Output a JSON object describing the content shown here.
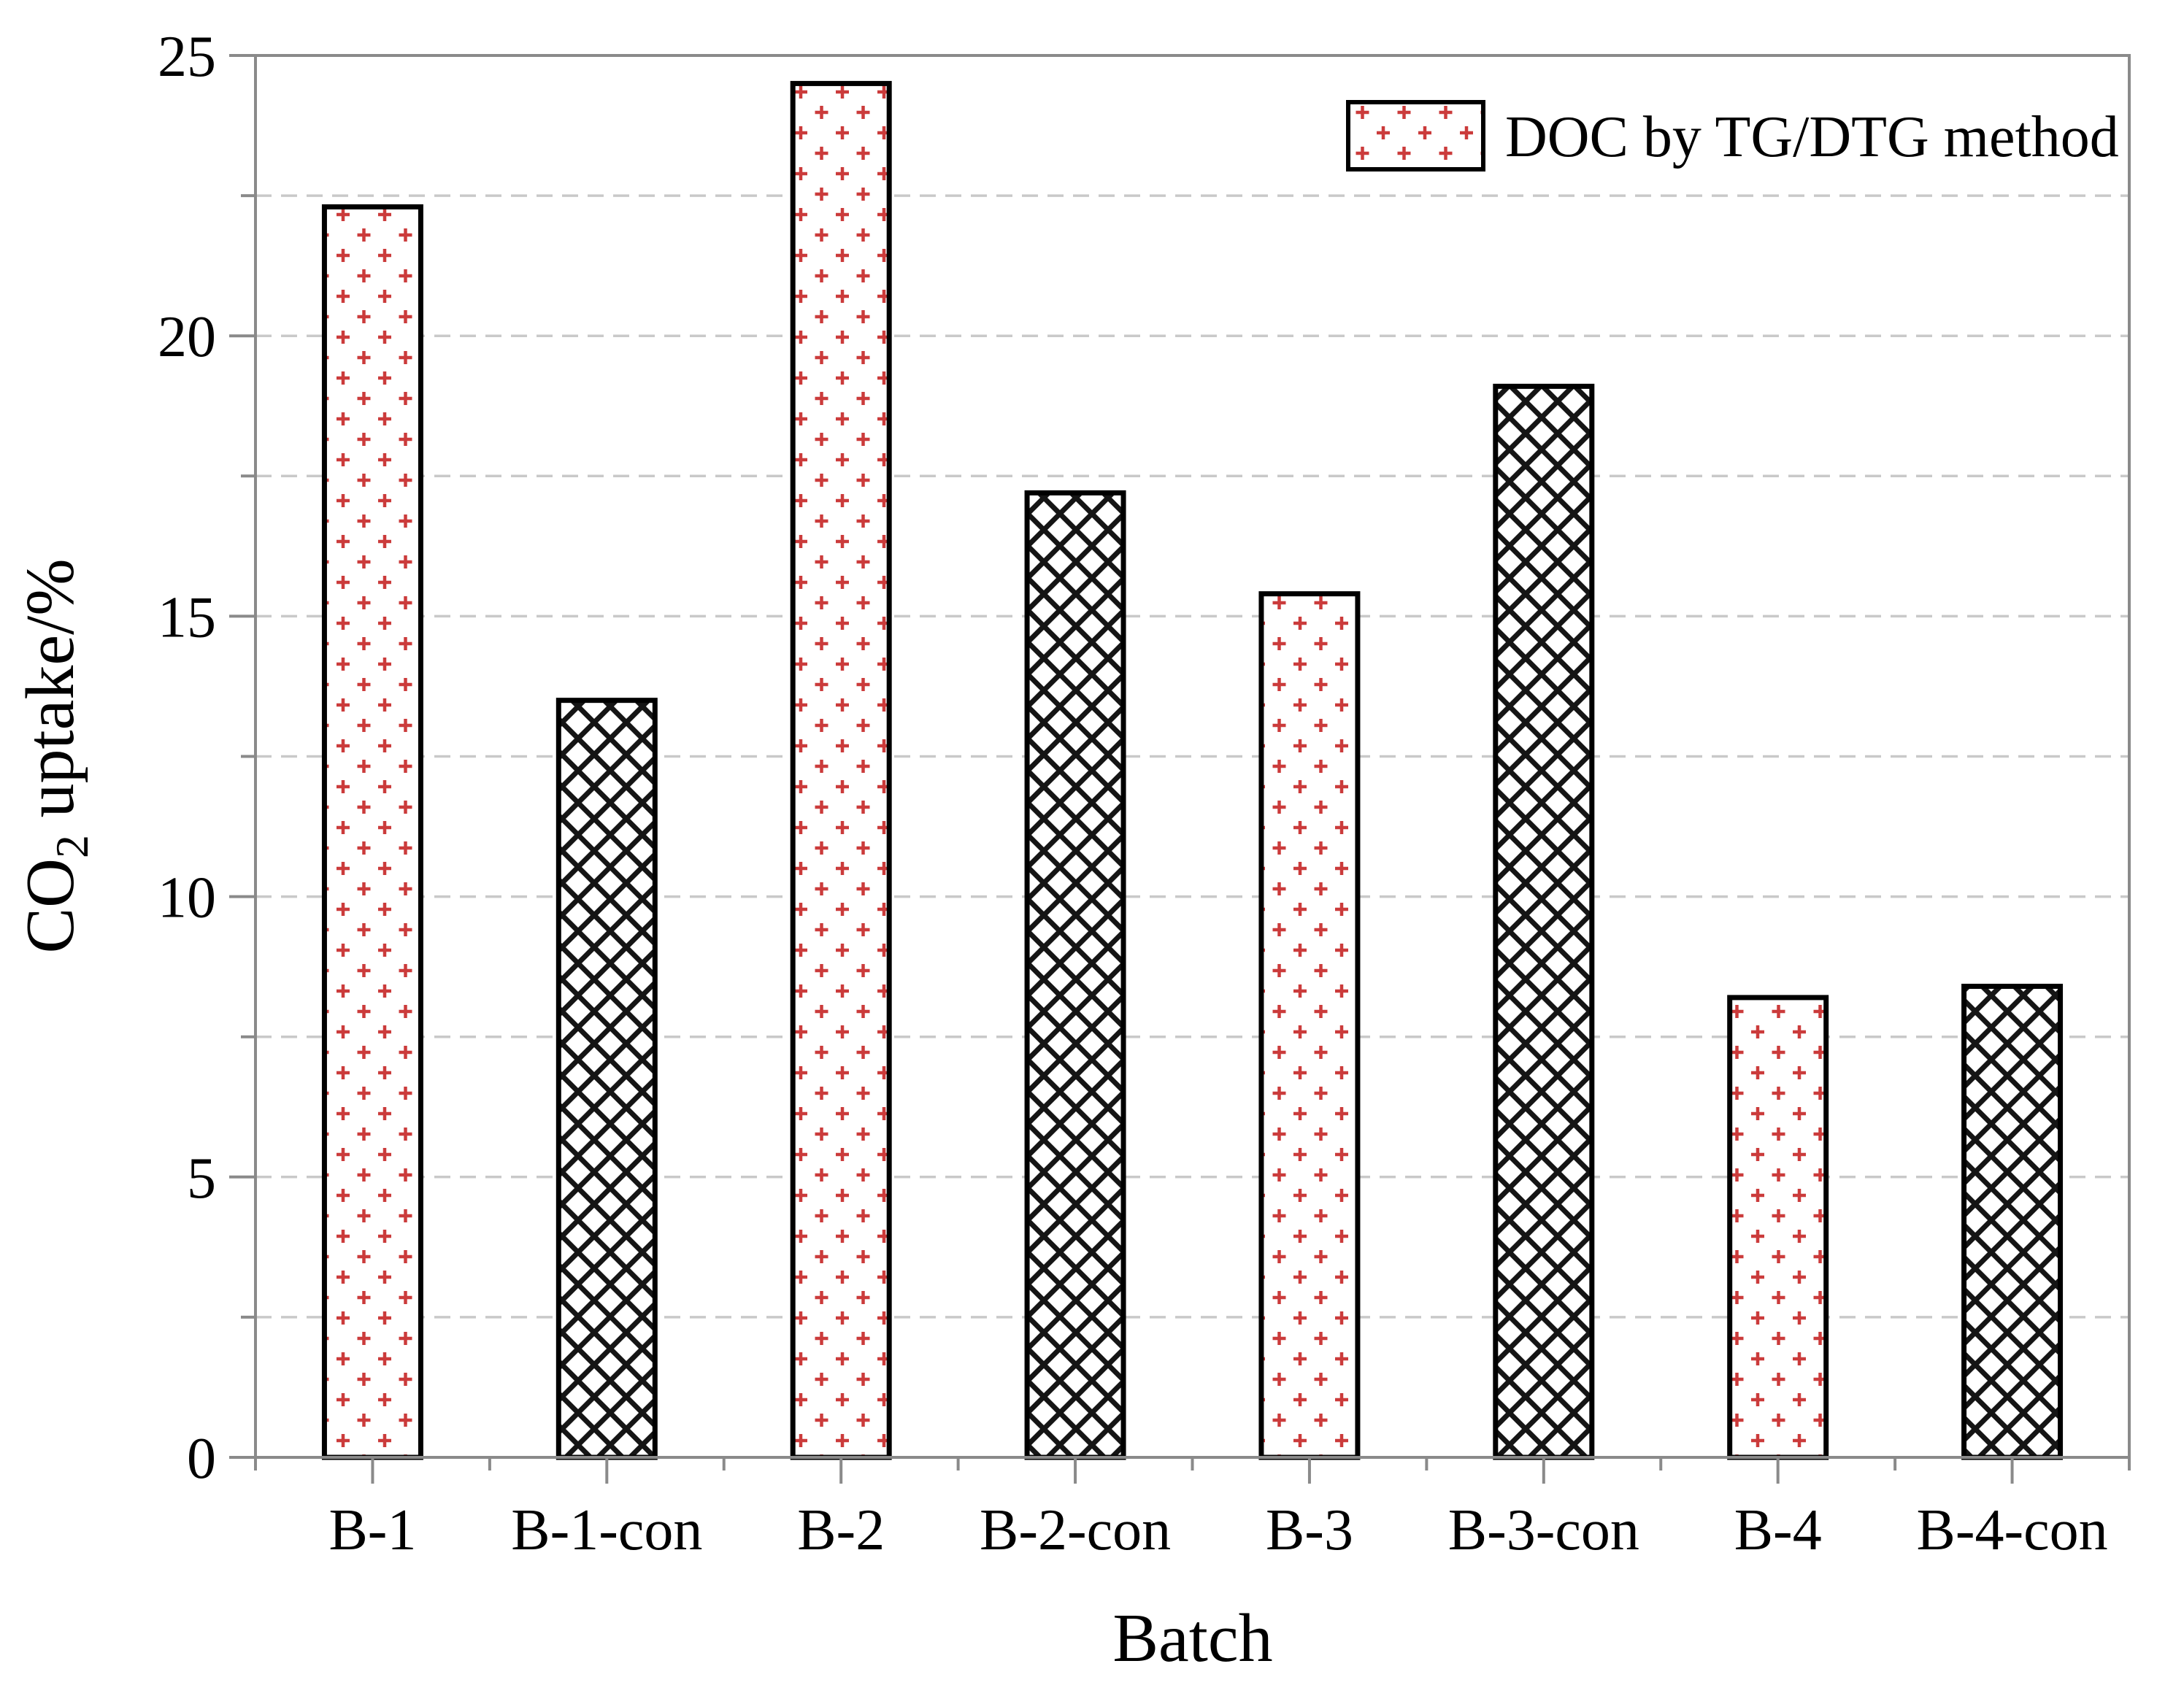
{
  "chart_data": {
    "type": "bar",
    "title": "",
    "xlabel": "Batch",
    "ylabel": "CO2 uptake/%",
    "ylabel_parts": {
      "prefix": "CO",
      "subscript": "2",
      "suffix": " uptake/%"
    },
    "categories": [
      "B-1",
      "B-1-con",
      "B-2",
      "B-2-con",
      "B-3",
      "B-3-con",
      "B-4",
      "B-4-con"
    ],
    "series": [
      {
        "name": "DOC by TG/DTG method",
        "values": [
          22.3,
          13.5,
          24.5,
          17.2,
          15.4,
          19.1,
          8.2,
          8.4
        ]
      }
    ],
    "bar_patterns": [
      "red-plus-dots",
      "black-crosshatch",
      "red-plus-dots",
      "black-crosshatch",
      "red-plus-dots",
      "black-crosshatch",
      "red-plus-dots",
      "black-crosshatch"
    ],
    "ylim": [
      0,
      25
    ],
    "ytick_values": [
      0,
      5,
      10,
      15,
      20,
      25
    ],
    "ytick_labels": [
      "0",
      "5",
      "10",
      "15",
      "20",
      "25"
    ],
    "yminor_values": [
      2.5,
      7.5,
      12.5,
      17.5,
      22.5
    ],
    "gridlines": {
      "orientation": "horizontal",
      "style": "dashed",
      "interval": 2.5,
      "shown_between": [
        2.5,
        22.5
      ]
    },
    "legend": {
      "label": "DOC by TG/DTG method",
      "swatch_pattern": "red-plus-dots",
      "position": "top-right",
      "border": "none"
    },
    "colors": {
      "pattern_red": "#cb3b3b",
      "pattern_black": "#151515",
      "bar_border": "#000000",
      "axis_frame": "#8a8a8a",
      "gridline": "#c9c9c9",
      "text": "#000000",
      "background": "#ffffff"
    }
  }
}
